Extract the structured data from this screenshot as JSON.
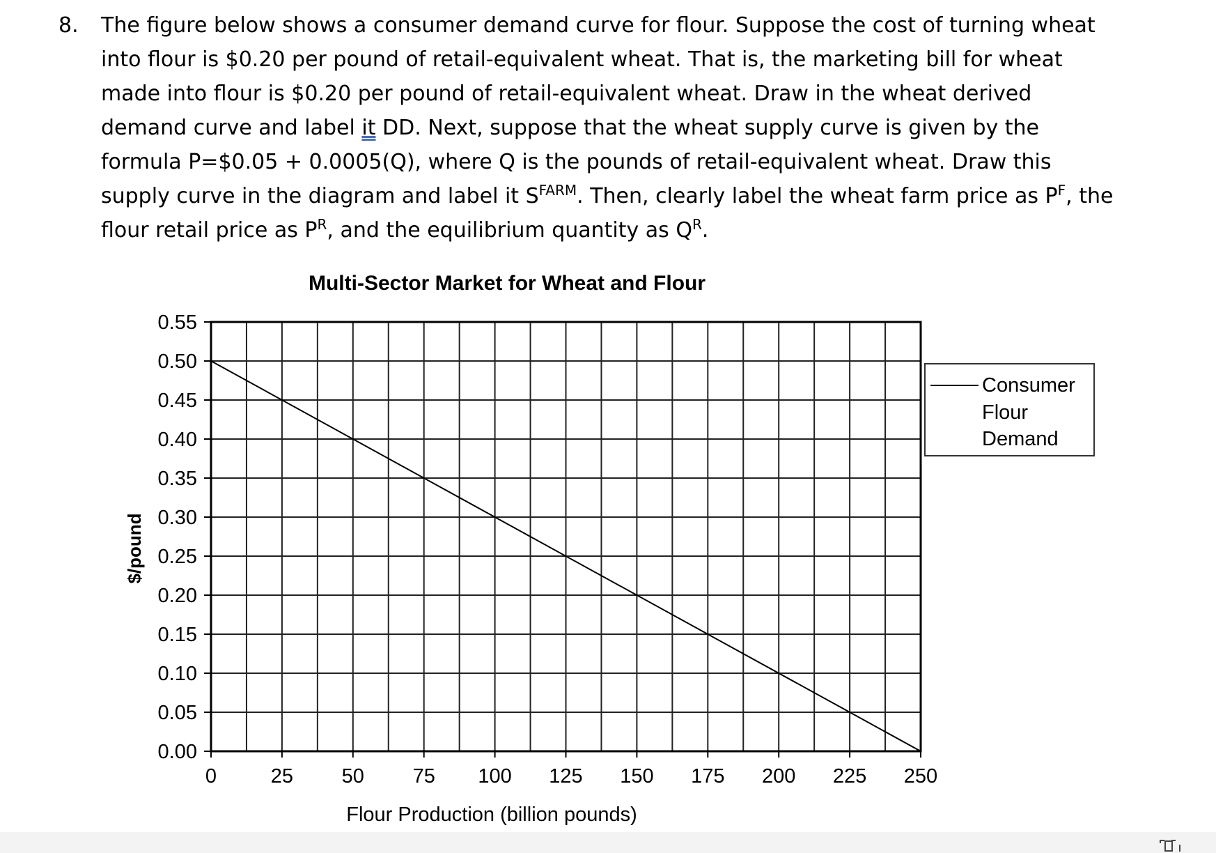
{
  "question": {
    "number": "8.",
    "line1": "The figure below shows a consumer demand curve for flour. Suppose the cost of turning wheat",
    "line2": "into flour is $0.20 per pound of retail-equivalent wheat. That is, the marketing bill for wheat",
    "line3": "made into flour is $0.20 per pound of retail-equivalent wheat. Draw in the wheat derived",
    "line4_pre": "demand curve and label ",
    "line4_it": "it",
    "line4_post": " DD. Next, suppose that the wheat supply curve is given by the",
    "line5": "formula P=$0.05 + 0.0005(Q), where Q is the pounds of retail-equivalent wheat. Draw this",
    "line6_a": "supply curve in the diagram and label it S",
    "line6_sup1": "FARM",
    "line6_b": ". Then, clearly label the wheat farm price as P",
    "line6_sup2": "F",
    "line6_c": ", the",
    "line7_a": "flour retail price as P",
    "line7_sup1": "R",
    "line7_b": ", and the equilibrium quantity as Q",
    "line7_sup2": "R",
    "line7_c": "."
  },
  "chart_data": {
    "type": "line",
    "title": "Multi-Sector Market for Wheat and Flour",
    "xlabel": "Flour Production (billion pounds)",
    "ylabel": "$/pound",
    "xlim": [
      0,
      250
    ],
    "ylim": [
      0,
      0.55
    ],
    "x_ticks": [
      0,
      25,
      50,
      75,
      100,
      125,
      150,
      175,
      200,
      225,
      250
    ],
    "x_tick_labels": [
      "0",
      "25",
      "50",
      "75",
      "100",
      "125",
      "150",
      "175",
      "200",
      "225",
      "250"
    ],
    "y_ticks": [
      0,
      0.05,
      0.1,
      0.15,
      0.2,
      0.25,
      0.3,
      0.35,
      0.4,
      0.45,
      0.5,
      0.55
    ],
    "y_tick_labels": [
      "0.00",
      "0.05",
      "0.10",
      "0.15",
      "0.20",
      "0.25",
      "0.30",
      "0.35",
      "0.40",
      "0.45",
      "0.50",
      "0.55"
    ],
    "grid": true,
    "minor_x_grid_step": 12.5,
    "legend_position": "right",
    "series": [
      {
        "name": "Consumer Flour Demand",
        "x": [
          0,
          250
        ],
        "y": [
          0.5,
          0.0
        ],
        "color": "#000000"
      }
    ]
  },
  "legend": {
    "line1": "Consumer",
    "line2": "Flour",
    "line3": "Demand"
  }
}
